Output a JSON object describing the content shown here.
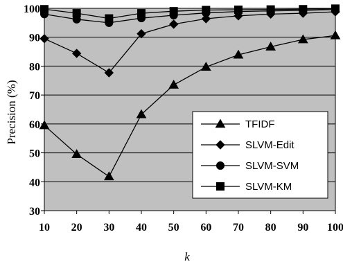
{
  "chart_data": {
    "type": "line",
    "title": "",
    "xlabel": "k",
    "ylabel": "Precision (%)",
    "x": [
      10,
      20,
      30,
      40,
      50,
      60,
      70,
      80,
      90,
      100
    ],
    "x_ticks": [
      "10",
      "20",
      "30",
      "40",
      "50",
      "60",
      "70",
      "80",
      "90",
      "100"
    ],
    "y_ticks": [
      "30",
      "40",
      "50",
      "60",
      "70",
      "80",
      "90",
      "100"
    ],
    "ylim": [
      30,
      100
    ],
    "xlim": [
      10,
      100
    ],
    "grid": "horizontal",
    "legend_position": "bottom-right",
    "colors": {
      "plot_background": "#c0c0c0",
      "line": "#000000",
      "marker": "#000000"
    },
    "series": [
      {
        "name": "TFIDF",
        "marker": "triangle",
        "values": [
          59.5,
          49.5,
          41.8,
          63.3,
          73.5,
          79.7,
          83.9,
          86.7,
          89.2,
          90.6
        ]
      },
      {
        "name": "SLVM-Edit",
        "marker": "diamond",
        "values": [
          89.5,
          84.4,
          77.7,
          91.2,
          94.5,
          96.4,
          97.4,
          98.0,
          98.3,
          98.8
        ]
      },
      {
        "name": "SLVM-SVM",
        "marker": "circle",
        "values": [
          98.0,
          96.2,
          95.0,
          96.6,
          97.6,
          98.4,
          98.9,
          99.1,
          99.3,
          99.6
        ]
      },
      {
        "name": "SLVM-KM",
        "marker": "square",
        "values": [
          99.7,
          98.3,
          96.5,
          98.3,
          99.0,
          99.4,
          99.5,
          99.6,
          99.7,
          99.9
        ]
      }
    ]
  }
}
